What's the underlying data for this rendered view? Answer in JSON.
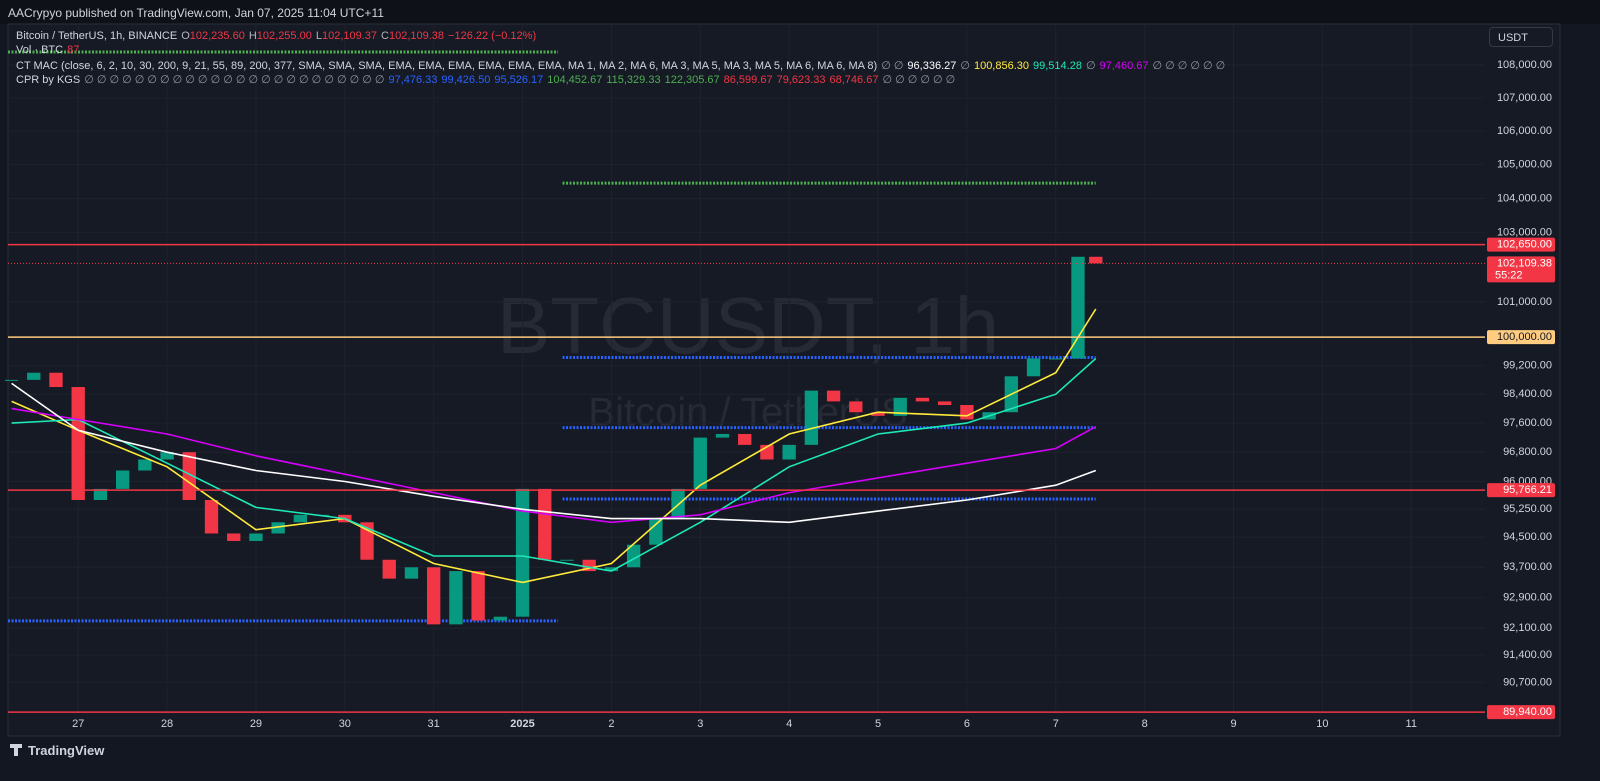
{
  "header": {
    "publisher": "AACrypyo published on TradingView.com, Jan 07, 2025 11:04 UTC+11"
  },
  "legend": {
    "symbol": "Bitcoin / TetherUS, 1h, BINANCE",
    "ohlc": [
      {
        "key": "O",
        "value": "102,235.60"
      },
      {
        "key": "H",
        "value": "102,255.00"
      },
      {
        "key": "L",
        "value": "102,109.37"
      },
      {
        "key": "C",
        "value": "102,109.38"
      }
    ],
    "change": "−126.22 (−0.12%)",
    "volume": {
      "label": "Vol · BTC",
      "value": "87"
    },
    "mac": {
      "label": "CT MAC (close, 6, 2, 10, 30, 200, 9, 21, 55, 89, 200, 377, SMA, SMA, SMA, EMA, EMA, EMA, EMA, EMA, EMA, MA 1, MA 2, MA 6, MA 3, MA 5, MA 3, MA 5, MA 6, MA 6, MA 8)",
      "items": [
        {
          "text": "∅ ∅",
          "color": "#9598a1"
        },
        {
          "text": "96,336.27",
          "color": "#ffffff"
        },
        {
          "text": "∅",
          "color": "#9598a1"
        },
        {
          "text": "100,856.30",
          "color": "#ffeb3b"
        },
        {
          "text": "99,514.28",
          "color": "#1de9b6"
        },
        {
          "text": "∅",
          "color": "#9598a1"
        },
        {
          "text": "97,460.67",
          "color": "#d500f9"
        },
        {
          "text": "∅ ∅ ∅ ∅ ∅ ∅",
          "color": "#9598a1"
        }
      ]
    },
    "cpr": {
      "label": "CPR by KGS",
      "items": [
        {
          "text": "∅ ∅ ∅ ∅ ∅ ∅ ∅ ∅ ∅ ∅ ∅ ∅ ∅ ∅ ∅ ∅ ∅ ∅ ∅ ∅ ∅ ∅ ∅ ∅",
          "color": "#9598a1"
        },
        {
          "text": "97,476.33",
          "color": "#2962ff"
        },
        {
          "text": "99,426.50",
          "color": "#2962ff"
        },
        {
          "text": "95,526.17",
          "color": "#2962ff"
        },
        {
          "text": "104,452.67",
          "color": "#4caf50"
        },
        {
          "text": "115,329.33",
          "color": "#4caf50"
        },
        {
          "text": "122,305.67",
          "color": "#4caf50"
        },
        {
          "text": "86,599.67",
          "color": "#f23645"
        },
        {
          "text": "79,623.33",
          "color": "#f23645"
        },
        {
          "text": "68,746.67",
          "color": "#f23645"
        },
        {
          "text": "∅ ∅ ∅ ∅ ∅ ∅",
          "color": "#9598a1"
        }
      ]
    }
  },
  "currency": "USDT",
  "watermark": {
    "symbol": "BTCUSDT, 1h",
    "name": "Bitcoin / TetherUS"
  },
  "footer": "TradingView",
  "chart_data": {
    "type": "candlestick",
    "log_scale": true,
    "grid": true,
    "up_color": "#089981",
    "down_color": "#f23645",
    "xlim": [
      -0.79,
      15.83
    ],
    "xticks": [
      {
        "value": 0,
        "label": "27"
      },
      {
        "value": 1,
        "label": "28"
      },
      {
        "value": 2,
        "label": "29"
      },
      {
        "value": 3,
        "label": "30"
      },
      {
        "value": 4,
        "label": "31"
      },
      {
        "value": 5,
        "label": "2025"
      },
      {
        "value": 6,
        "label": "2"
      },
      {
        "value": 7,
        "label": "3"
      },
      {
        "value": 8,
        "label": "4"
      },
      {
        "value": 9,
        "label": "5"
      },
      {
        "value": 10,
        "label": "6"
      },
      {
        "value": 11,
        "label": "7"
      },
      {
        "value": 12,
        "label": "8"
      },
      {
        "value": 13,
        "label": "9"
      },
      {
        "value": 14,
        "label": "10"
      },
      {
        "value": 15,
        "label": "11"
      }
    ],
    "ylim": [
      89360,
      109260
    ],
    "yticks": [
      {
        "value": 90700,
        "label": "90,700.00"
      },
      {
        "value": 91400,
        "label": "91,400.00"
      },
      {
        "value": 92100,
        "label": "92,100.00"
      },
      {
        "value": 92900,
        "label": "92,900.00"
      },
      {
        "value": 93700,
        "label": "93,700.00"
      },
      {
        "value": 94500,
        "label": "94,500.00"
      },
      {
        "value": 95250,
        "label": "95,250.00"
      },
      {
        "value": 96000,
        "label": "96,000.00"
      },
      {
        "value": 96800,
        "label": "96,800.00"
      },
      {
        "value": 97600,
        "label": "97,600.00"
      },
      {
        "value": 98400,
        "label": "98,400.00"
      },
      {
        "value": 99200,
        "label": "99,200.00"
      },
      {
        "value": 101000,
        "label": "101,000.00"
      },
      {
        "value": 103000,
        "label": "103,000.00"
      },
      {
        "value": 104000,
        "label": "104,000.00"
      },
      {
        "value": 105000,
        "label": "105,000.00"
      },
      {
        "value": 106000,
        "label": "106,000.00"
      },
      {
        "value": 107000,
        "label": "107,000.00"
      },
      {
        "value": 108000,
        "label": "108,000.00"
      }
    ],
    "x": [
      -0.75,
      -0.5,
      -0.25,
      0,
      0.25,
      0.5,
      0.75,
      1,
      1.25,
      1.5,
      1.75,
      2,
      2.25,
      2.5,
      2.75,
      3,
      3.25,
      3.5,
      3.75,
      4,
      4.25,
      4.5,
      4.75,
      5,
      5.25,
      5.5,
      5.75,
      6,
      6.25,
      6.5,
      6.75,
      7,
      7.25,
      7.5,
      7.75,
      8,
      8.25,
      8.5,
      8.75,
      9,
      9.25,
      9.5,
      9.75,
      10,
      10.25,
      10.5,
      10.75,
      11,
      11.25,
      11.45
    ],
    "values": [
      98800,
      99000,
      98600,
      95500,
      95800,
      96300,
      96600,
      96800,
      95500,
      94600,
      94400,
      94600,
      94900,
      95100,
      95100,
      94900,
      93900,
      93400,
      93700,
      92200,
      93600,
      92300,
      92400,
      95800,
      93900,
      93900,
      93600,
      93700,
      94300,
      95000,
      95800,
      97200,
      97300,
      97000,
      96600,
      97000,
      98500,
      98200,
      97900,
      97800,
      98300,
      98200,
      98100,
      97700,
      97900,
      98900,
      99400,
      99400,
      102300,
      102109.38
    ],
    "ma_x": [
      -0.75,
      0,
      1,
      2,
      3,
      4,
      5,
      6,
      7,
      8,
      9,
      10,
      11,
      11.45
    ],
    "lines": [
      {
        "color": "#ffeb3b",
        "values": [
          98200,
          97400,
          96400,
          94700,
          95000,
          93800,
          93300,
          93800,
          95900,
          97300,
          97900,
          97800,
          99000,
          100800
        ]
      },
      {
        "color": "#1de9b6",
        "values": [
          97600,
          97700,
          96500,
          95300,
          95000,
          94000,
          94000,
          93600,
          94900,
          96400,
          97300,
          97600,
          98400,
          99400
        ]
      },
      {
        "color": "#d500f9",
        "values": [
          98000,
          97700,
          97300,
          96700,
          96200,
          95700,
          95200,
          94900,
          95100,
          95700,
          96100,
          96500,
          96900,
          97500
        ]
      },
      {
        "color": "#ffffff",
        "values": [
          98700,
          97400,
          96800,
          96300,
          96000,
          95600,
          95250,
          95000,
          95000,
          94900,
          95200,
          95500,
          95900,
          96300
        ]
      }
    ],
    "levels": [
      {
        "value": 102650,
        "label": "102,650.00",
        "color": "#f23645"
      },
      {
        "value": 100000,
        "label": "100,000.00",
        "color": "#ffcc80"
      },
      {
        "value": 95766.21,
        "label": "95,766.21",
        "color": "#f23645"
      },
      {
        "value": 89940,
        "label": "89,940.00",
        "color": "#f23645"
      }
    ],
    "last_price": {
      "value": 102109.38,
      "label": "102,109.38",
      "countdown": "55:22",
      "color": "#f23645"
    },
    "cpr_lines": [
      {
        "value": 108400,
        "color": "#4caf50",
        "from": -0.79,
        "to": 5.4
      },
      {
        "value": 92290,
        "color": "#2962ff",
        "from": -0.79,
        "to": 5.4
      },
      {
        "value": 104452.67,
        "color": "#4caf50",
        "from": 5.45,
        "to": 11.45
      },
      {
        "value": 99426.5,
        "color": "#2962ff",
        "from": 5.45,
        "to": 11.45
      },
      {
        "value": 97476.33,
        "color": "#2962ff",
        "from": 5.45,
        "to": 11.45
      },
      {
        "value": 95526.17,
        "color": "#2962ff",
        "from": 5.45,
        "to": 11.45
      }
    ]
  }
}
